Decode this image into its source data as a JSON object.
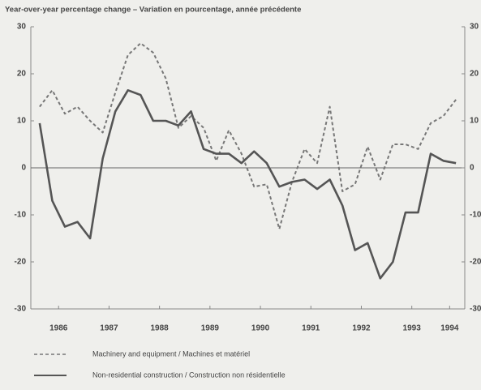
{
  "chart_data": {
    "type": "line",
    "title": "Year-over-year percentage change – Variation en pourcentage, année précédente",
    "x": [
      1986.125,
      1986.375,
      1986.625,
      1986.875,
      1987.125,
      1987.375,
      1987.625,
      1987.875,
      1988.125,
      1988.375,
      1988.625,
      1988.875,
      1989.125,
      1989.375,
      1989.625,
      1989.875,
      1990.125,
      1990.375,
      1990.625,
      1990.875,
      1991.125,
      1991.375,
      1991.625,
      1991.875,
      1992.125,
      1992.375,
      1992.625,
      1992.875,
      1993.125,
      1993.375,
      1993.625,
      1993.875,
      1994.125,
      1994.375
    ],
    "series": [
      {
        "name": "Machinery and equipment / Machines et matériel",
        "color": "#777777",
        "dash": true,
        "values": [
          13,
          16.5,
          11.5,
          13,
          10,
          7.5,
          16,
          24,
          26.5,
          24.5,
          19,
          8.5,
          11,
          8.5,
          1.5,
          8,
          3,
          -4,
          -3.5,
          -13,
          -3,
          4,
          1,
          13,
          -5,
          -3.5,
          4.5,
          -2.5,
          5,
          5,
          4,
          9.5,
          11,
          14.5
        ]
      },
      {
        "name": "Non-residential construction / Construction non résidentielle",
        "color": "#555555",
        "dash": false,
        "values": [
          9.5,
          -7,
          -12.5,
          -11.5,
          -15,
          2,
          12,
          16.5,
          15.5,
          10,
          10,
          9,
          12,
          4,
          3,
          3,
          1,
          3.5,
          1,
          -4,
          -3,
          -2.5,
          -4.5,
          -2.5,
          -8,
          -17.5,
          -16,
          -23.5,
          -20,
          -9.5,
          -9.5,
          3,
          1.5,
          1
        ]
      }
    ],
    "xlim": [
      1985.95,
      1994.55
    ],
    "xticks": [
      {
        "value": 1986.5,
        "label": "1986"
      },
      {
        "value": 1987.5,
        "label": "1987"
      },
      {
        "value": 1988.5,
        "label": "1988"
      },
      {
        "value": 1989.5,
        "label": "1989"
      },
      {
        "value": 1990.5,
        "label": "1990"
      },
      {
        "value": 1991.5,
        "label": "1991"
      },
      {
        "value": 1992.5,
        "label": "1992"
      },
      {
        "value": 1993.5,
        "label": "1993"
      },
      {
        "value": 1994.25,
        "label": "1994"
      }
    ],
    "ylim": [
      -30,
      30
    ],
    "yticks": [
      30,
      20,
      10,
      0,
      -10,
      -20,
      -30
    ],
    "y2lim": [
      -30,
      30
    ],
    "y2ticks": [
      30,
      20,
      10,
      0,
      -10,
      -20,
      -30
    ]
  }
}
